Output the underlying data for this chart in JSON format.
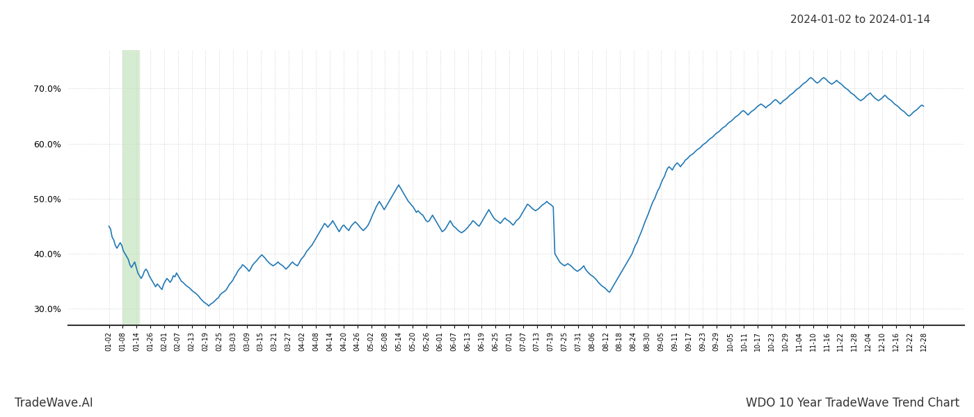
{
  "title_date": "2024-01-02 to 2024-01-14",
  "footer_left": "TradeWave.AI",
  "footer_right": "WDO 10 Year TradeWave Trend Chart",
  "line_color": "#1f77b4",
  "line_width": 1.2,
  "highlight_color": "#d6ecd2",
  "ylim_min": 0.27,
  "ylim_max": 0.77,
  "yticks": [
    0.3,
    0.4,
    0.5,
    0.6,
    0.7
  ],
  "background_color": "#ffffff",
  "grid_color": "#d0d0d0",
  "title_date_fontsize": 11,
  "footer_fontsize": 12,
  "x_labels": [
    "01-02",
    "01-08",
    "01-14",
    "01-26",
    "02-01",
    "02-07",
    "02-13",
    "02-19",
    "02-25",
    "03-03",
    "03-09",
    "03-15",
    "03-21",
    "03-27",
    "04-02",
    "04-08",
    "04-14",
    "04-20",
    "04-26",
    "05-02",
    "05-08",
    "05-14",
    "05-20",
    "05-26",
    "06-01",
    "06-07",
    "06-13",
    "06-19",
    "06-25",
    "07-01",
    "07-07",
    "07-13",
    "07-19",
    "07-25",
    "07-31",
    "08-06",
    "08-12",
    "08-18",
    "08-24",
    "08-30",
    "09-05",
    "09-11",
    "09-17",
    "09-23",
    "09-29",
    "10-05",
    "10-11",
    "10-17",
    "10-23",
    "10-29",
    "11-04",
    "11-10",
    "11-16",
    "11-22",
    "11-28",
    "12-04",
    "12-10",
    "12-16",
    "12-22",
    "12-28"
  ],
  "values": [
    0.45,
    0.445,
    0.43,
    0.425,
    0.415,
    0.41,
    0.415,
    0.42,
    0.415,
    0.405,
    0.4,
    0.395,
    0.39,
    0.38,
    0.375,
    0.38,
    0.385,
    0.375,
    0.365,
    0.36,
    0.355,
    0.36,
    0.368,
    0.372,
    0.368,
    0.36,
    0.355,
    0.35,
    0.345,
    0.34,
    0.345,
    0.342,
    0.338,
    0.335,
    0.345,
    0.35,
    0.355,
    0.352,
    0.348,
    0.352,
    0.36,
    0.358,
    0.365,
    0.36,
    0.355,
    0.35,
    0.348,
    0.345,
    0.342,
    0.34,
    0.338,
    0.335,
    0.332,
    0.33,
    0.328,
    0.325,
    0.322,
    0.318,
    0.315,
    0.312,
    0.31,
    0.308,
    0.305,
    0.308,
    0.31,
    0.312,
    0.315,
    0.318,
    0.32,
    0.325,
    0.328,
    0.33,
    0.332,
    0.335,
    0.34,
    0.345,
    0.348,
    0.352,
    0.358,
    0.362,
    0.368,
    0.372,
    0.375,
    0.38,
    0.378,
    0.375,
    0.372,
    0.368,
    0.372,
    0.378,
    0.382,
    0.385,
    0.388,
    0.392,
    0.395,
    0.398,
    0.395,
    0.392,
    0.388,
    0.385,
    0.382,
    0.38,
    0.378,
    0.38,
    0.382,
    0.385,
    0.382,
    0.38,
    0.378,
    0.375,
    0.372,
    0.375,
    0.378,
    0.382,
    0.385,
    0.382,
    0.38,
    0.378,
    0.382,
    0.388,
    0.392,
    0.395,
    0.4,
    0.405,
    0.408,
    0.412,
    0.415,
    0.42,
    0.425,
    0.43,
    0.435,
    0.44,
    0.445,
    0.45,
    0.455,
    0.452,
    0.448,
    0.452,
    0.455,
    0.46,
    0.455,
    0.45,
    0.445,
    0.44,
    0.445,
    0.45,
    0.452,
    0.448,
    0.445,
    0.442,
    0.448,
    0.452,
    0.455,
    0.458,
    0.455,
    0.452,
    0.448,
    0.445,
    0.442,
    0.445,
    0.448,
    0.452,
    0.458,
    0.465,
    0.472,
    0.478,
    0.485,
    0.49,
    0.495,
    0.49,
    0.485,
    0.48,
    0.485,
    0.49,
    0.495,
    0.5,
    0.505,
    0.51,
    0.515,
    0.52,
    0.525,
    0.52,
    0.515,
    0.51,
    0.505,
    0.5,
    0.495,
    0.492,
    0.488,
    0.485,
    0.48,
    0.475,
    0.478,
    0.475,
    0.472,
    0.47,
    0.465,
    0.46,
    0.458,
    0.46,
    0.465,
    0.47,
    0.465,
    0.46,
    0.455,
    0.45,
    0.445,
    0.44,
    0.442,
    0.445,
    0.45,
    0.455,
    0.46,
    0.455,
    0.45,
    0.448,
    0.445,
    0.442,
    0.44,
    0.438,
    0.44,
    0.442,
    0.445,
    0.448,
    0.452,
    0.455,
    0.46,
    0.458,
    0.455,
    0.452,
    0.45,
    0.455,
    0.46,
    0.465,
    0.47,
    0.475,
    0.48,
    0.475,
    0.47,
    0.465,
    0.462,
    0.46,
    0.458,
    0.455,
    0.458,
    0.462,
    0.465,
    0.462,
    0.46,
    0.458,
    0.455,
    0.452,
    0.455,
    0.46,
    0.462,
    0.465,
    0.47,
    0.475,
    0.48,
    0.485,
    0.49,
    0.488,
    0.485,
    0.482,
    0.48,
    0.478,
    0.48,
    0.482,
    0.485,
    0.488,
    0.49,
    0.492,
    0.495,
    0.492,
    0.49,
    0.488,
    0.485,
    0.4,
    0.395,
    0.39,
    0.385,
    0.382,
    0.38,
    0.378,
    0.38,
    0.382,
    0.38,
    0.378,
    0.375,
    0.372,
    0.37,
    0.368,
    0.37,
    0.372,
    0.375,
    0.378,
    0.372,
    0.368,
    0.365,
    0.362,
    0.36,
    0.358,
    0.355,
    0.352,
    0.348,
    0.345,
    0.342,
    0.34,
    0.338,
    0.335,
    0.332,
    0.33,
    0.335,
    0.34,
    0.345,
    0.35,
    0.355,
    0.36,
    0.365,
    0.37,
    0.375,
    0.38,
    0.385,
    0.39,
    0.395,
    0.4,
    0.408,
    0.415,
    0.42,
    0.428,
    0.435,
    0.442,
    0.45,
    0.458,
    0.465,
    0.472,
    0.48,
    0.488,
    0.495,
    0.5,
    0.508,
    0.515,
    0.52,
    0.528,
    0.535,
    0.54,
    0.548,
    0.555,
    0.558,
    0.555,
    0.552,
    0.558,
    0.562,
    0.565,
    0.562,
    0.558,
    0.562,
    0.565,
    0.57,
    0.572,
    0.575,
    0.578,
    0.58,
    0.582,
    0.585,
    0.588,
    0.59,
    0.592,
    0.595,
    0.598,
    0.6,
    0.602,
    0.605,
    0.608,
    0.61,
    0.612,
    0.615,
    0.618,
    0.62,
    0.622,
    0.625,
    0.628,
    0.63,
    0.632,
    0.635,
    0.638,
    0.64,
    0.642,
    0.645,
    0.648,
    0.65,
    0.652,
    0.655,
    0.658,
    0.66,
    0.658,
    0.655,
    0.652,
    0.655,
    0.658,
    0.66,
    0.662,
    0.665,
    0.668,
    0.67,
    0.672,
    0.67,
    0.668,
    0.665,
    0.668,
    0.67,
    0.672,
    0.675,
    0.678,
    0.68,
    0.678,
    0.675,
    0.672,
    0.675,
    0.678,
    0.68,
    0.682,
    0.685,
    0.688,
    0.69,
    0.692,
    0.695,
    0.698,
    0.7,
    0.702,
    0.705,
    0.708,
    0.71,
    0.712,
    0.715,
    0.718,
    0.72,
    0.718,
    0.715,
    0.712,
    0.71,
    0.712,
    0.715,
    0.718,
    0.72,
    0.718,
    0.715,
    0.712,
    0.71,
    0.708,
    0.71,
    0.712,
    0.715,
    0.712,
    0.71,
    0.708,
    0.705,
    0.702,
    0.7,
    0.698,
    0.695,
    0.692,
    0.69,
    0.688,
    0.685,
    0.682,
    0.68,
    0.678,
    0.68,
    0.682,
    0.685,
    0.688,
    0.69,
    0.692,
    0.688,
    0.685,
    0.682,
    0.68,
    0.678,
    0.68,
    0.682,
    0.685,
    0.688,
    0.685,
    0.682,
    0.68,
    0.678,
    0.675,
    0.672,
    0.67,
    0.668,
    0.665,
    0.662,
    0.66,
    0.658,
    0.655,
    0.652,
    0.65,
    0.652,
    0.655,
    0.658,
    0.66,
    0.662,
    0.665,
    0.668,
    0.67,
    0.668
  ]
}
